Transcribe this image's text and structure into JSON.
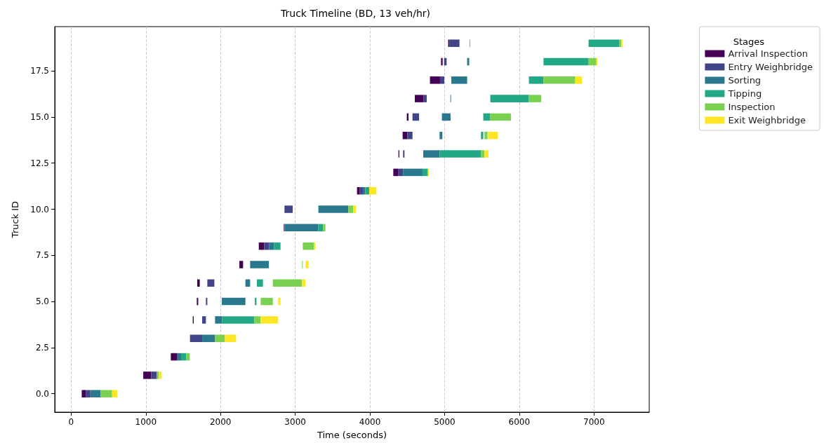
{
  "chart_data": {
    "type": "bar",
    "orientation": "horizontal",
    "title": "Truck Timeline (BD, 13 veh/hr)",
    "xlabel": "Time (seconds)",
    "ylabel": "Truck ID",
    "legend_title": "Stages",
    "legend": "top right",
    "grid": "x",
    "xlim": [
      -220,
      7740
    ],
    "xticks": [
      0,
      1000,
      2000,
      3000,
      4000,
      5000,
      6000,
      7000
    ],
    "ylim": [
      -1.0,
      19.9
    ],
    "yticks": [
      {
        "value": 0,
        "label": "0.0"
      },
      {
        "value": 2.5,
        "label": "2.5"
      },
      {
        "value": 5,
        "label": "5.0"
      },
      {
        "value": 7.5,
        "label": "7.5"
      },
      {
        "value": 10,
        "label": "10.0"
      },
      {
        "value": 12.5,
        "label": "12.5"
      },
      {
        "value": 15,
        "label": "15.0"
      },
      {
        "value": 17.5,
        "label": "17.5"
      }
    ],
    "series": [
      {
        "name": "Arrival Inspection",
        "color": "#440154",
        "x": [
          0,
          1,
          2,
          4,
          5,
          6,
          7,
          8,
          9,
          11,
          12,
          13,
          14,
          15,
          16,
          17,
          18,
          19
        ],
        "base": [
          141,
          965,
          1334,
          1628,
          1682,
          1688,
          2252,
          2512,
          2847,
          3827,
          4313,
          4382,
          4438,
          4494,
          4601,
          4804,
          4952,
          5048
        ],
        "values": [
          54,
          106,
          88,
          13,
          19,
          34,
          50,
          72,
          9,
          38,
          69,
          12,
          63,
          23,
          119,
          135,
          22,
          16
        ]
      },
      {
        "name": "Entry Weighbridge",
        "color": "#414487",
        "x": [
          0,
          1,
          3,
          4,
          5,
          6,
          8,
          10,
          11,
          12,
          13,
          14,
          15,
          16,
          17,
          18,
          19
        ],
        "base": [
          195,
          1071,
          1591,
          1754,
          1804,
          1823,
          2584,
          2856,
          3865,
          4382,
          4444,
          4501,
          4570,
          4720,
          4939,
          4993,
          5064
        ],
        "values": [
          62,
          72,
          163,
          50,
          19,
          94,
          69,
          110,
          41,
          62,
          19,
          69,
          88,
          41,
          57,
          34,
          135
        ]
      },
      {
        "name": "Sorting",
        "color": "#2a788e",
        "x": [
          0,
          2,
          3,
          4,
          5,
          6,
          7,
          8,
          9,
          10,
          11,
          12,
          13,
          14,
          15,
          16,
          17,
          18,
          19
        ],
        "base": [
          257,
          1422,
          1754,
          1926,
          2017,
          2333,
          2396,
          2653,
          2856,
          3310,
          3906,
          4444,
          4714,
          4933,
          4964,
          5077,
          5090,
          5302,
          5334
        ],
        "values": [
          135,
          50,
          172,
          94,
          316,
          63,
          251,
          62,
          454,
          401,
          31,
          260,
          219,
          37,
          116,
          9,
          212,
          28,
          6
        ]
      },
      {
        "name": "Tipping",
        "color": "#22a884",
        "x": [
          2,
          4,
          5,
          6,
          8,
          9,
          11,
          12,
          13,
          14,
          15,
          16,
          17,
          18,
          19
        ],
        "base": [
          1472,
          2020,
          2459,
          2487,
          2715,
          3310,
          3937,
          4704,
          4933,
          5487,
          5518,
          5612,
          6129,
          6324,
          6928
        ],
        "values": [
          69,
          432,
          22,
          81,
          88,
          63,
          53,
          72,
          554,
          31,
          94,
          517,
          195,
          604,
          413
        ]
      },
      {
        "name": "Inspection",
        "color": "#7ad151",
        "x": [
          0,
          1,
          2,
          3,
          4,
          5,
          6,
          7,
          8,
          9,
          10,
          13,
          14,
          15,
          16,
          17,
          18,
          19
        ],
        "base": [
          392,
          1143,
          1541,
          1926,
          2452,
          2537,
          2700,
          3091,
          3101,
          3373,
          3711,
          5487,
          5534,
          5612,
          6129,
          6324,
          6928,
          7341
        ],
        "values": [
          156,
          32,
          47,
          132,
          85,
          163,
          391,
          10,
          147,
          31,
          63,
          47,
          41,
          276,
          163,
          425,
          103,
          25
        ]
      },
      {
        "name": "Exit Weighbridge",
        "color": "#fde725",
        "x": [
          0,
          1,
          3,
          4,
          5,
          6,
          7,
          8,
          10,
          11,
          12,
          13,
          14,
          17,
          18,
          19
        ],
        "base": [
          548,
          1175,
          2058,
          2537,
          2772,
          3091,
          3138,
          3248,
          3774,
          3990,
          4776,
          5534,
          5581,
          6749,
          7031,
          7366
        ],
        "values": [
          69,
          37,
          150,
          235,
          31,
          47,
          41,
          22,
          38,
          97,
          13,
          54,
          132,
          91,
          16,
          16
        ]
      }
    ]
  }
}
